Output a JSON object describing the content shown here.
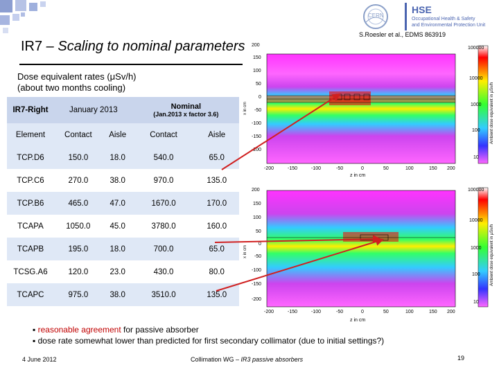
{
  "header": {
    "org_name": "HSE",
    "org_sub1": "Occupational Health & Safety",
    "org_sub2": "and Environmental Protection Unit",
    "cern_logo": "CERN"
  },
  "slide": {
    "title_main": "IR7",
    "title_rest": " – Scaling to nominal parameters",
    "reference": "S.Roesler et al., EDMS 863919",
    "subtitle_line1": "Dose equivalent rates (μSv/h)",
    "subtitle_line2": "(about two months cooling)"
  },
  "table": {
    "h_group1": "IR7-Right",
    "h_group2": "January 2013",
    "h_group3_line1": "Nominal",
    "h_group3_line2": "(Jan.2013 x factor 3.6)",
    "columns": [
      "Element",
      "Contact",
      "Aisle",
      "Contact",
      "Aisle"
    ],
    "rows": [
      [
        "TCP.D6",
        "150.0",
        "18.0",
        "540.0",
        "65.0"
      ],
      [
        "TCP.C6",
        "270.0",
        "38.0",
        "970.0",
        "135.0"
      ],
      [
        "TCP.B6",
        "465.0",
        "47.0",
        "1670.0",
        "170.0"
      ],
      [
        "TCAPA",
        "1050.0",
        "45.0",
        "3780.0",
        "160.0"
      ],
      [
        "TCAPB",
        "195.0",
        "18.0",
        "700.0",
        "65.0"
      ],
      [
        "TCSG.A6",
        "120.0",
        "23.0",
        "430.0",
        "80.0"
      ],
      [
        "TCAPC",
        "975.0",
        "38.0",
        "3510.0",
        "135.0"
      ]
    ]
  },
  "plot_top": {
    "y_ticks": [
      "200",
      "150",
      "100",
      "50",
      "0",
      "-50",
      "-100",
      "-150",
      "-200"
    ],
    "x_ticks": [
      "-200",
      "-150",
      "-100",
      "-50",
      "0",
      "50",
      "100",
      "150",
      "200"
    ],
    "xlabel": "z in cm",
    "ylabel": "x in cm",
    "colorbar_ticks": [
      "100000",
      "10000",
      "1000",
      "100",
      "10"
    ],
    "colorbar_label": "Ambient dose equivalent in μSv/h"
  },
  "plot_bottom": {
    "y_ticks": [
      "200",
      "150",
      "100",
      "50",
      "0",
      "-50",
      "-100",
      "-150",
      "-200"
    ],
    "x_ticks": [
      "-200",
      "-150",
      "-100",
      "-50",
      "0",
      "50",
      "100",
      "150",
      "200"
    ],
    "xlabel": "z in cm",
    "ylabel": "x in cm",
    "colorbar_ticks": [
      "100000",
      "10000",
      "1000",
      "100",
      "10"
    ],
    "colorbar_label": "Ambient dose equivalent in μSv/h"
  },
  "bullets": {
    "b1_highlight": "reasonable agreement",
    "b1_rest": " for passive absorber",
    "b2": "dose rate somewhat lower than predicted for first secondary collimator (due to initial settings?)"
  },
  "footer": {
    "date": "4 June 2012",
    "mid_a": "Collimation WG – ",
    "mid_b": "IR3 passive absorbers",
    "page": "19"
  },
  "colors": {
    "accent_red": "#c00000",
    "table_band": "#dfe8f6",
    "arrow": "#d02020"
  }
}
